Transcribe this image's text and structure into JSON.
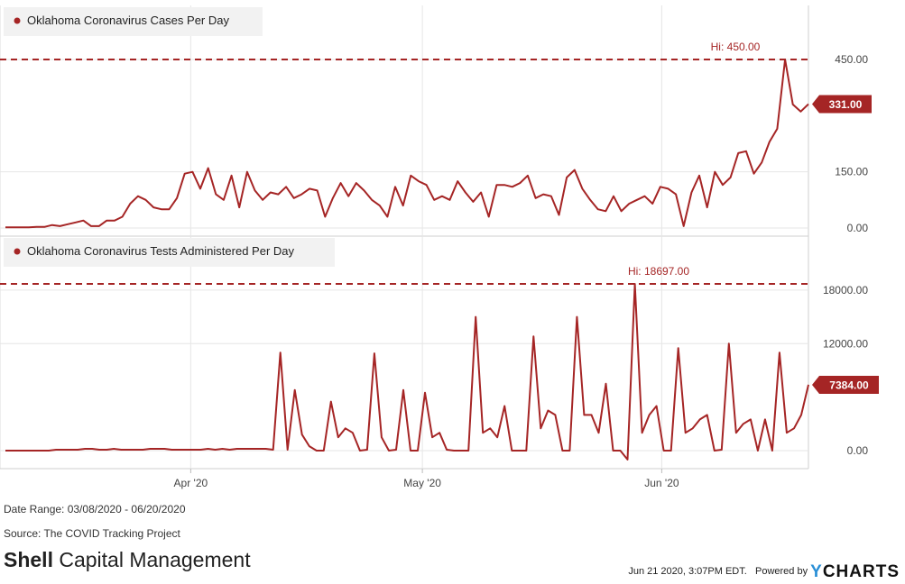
{
  "chart_data": [
    {
      "type": "line",
      "legend": "Oklahoma Coronavirus Cases Per Day",
      "color": "#a52525",
      "x_start": "03/08/2020",
      "x_end": "06/20/2020",
      "ylim": [
        0,
        450
      ],
      "yticks": [
        0,
        150,
        450
      ],
      "ytick_labels": [
        "0.00",
        "150.00",
        "450.00"
      ],
      "grid": true,
      "hi_label": "Hi: 450.00",
      "hi_value": 450,
      "last_label": "331.00",
      "last_value": 331,
      "values": [
        2,
        2,
        2,
        2,
        3,
        3,
        8,
        5,
        10,
        15,
        20,
        5,
        5,
        20,
        20,
        30,
        65,
        85,
        75,
        55,
        50,
        50,
        80,
        145,
        150,
        105,
        160,
        90,
        75,
        140,
        55,
        150,
        100,
        75,
        95,
        90,
        110,
        80,
        90,
        105,
        100,
        30,
        80,
        120,
        85,
        120,
        100,
        75,
        60,
        30,
        110,
        60,
        140,
        125,
        115,
        75,
        85,
        75,
        125,
        95,
        70,
        95,
        30,
        115,
        115,
        110,
        120,
        140,
        80,
        90,
        85,
        35,
        135,
        155,
        105,
        75,
        50,
        45,
        85,
        45,
        65,
        75,
        85,
        65,
        110,
        105,
        90,
        5,
        95,
        140,
        55,
        150,
        115,
        135,
        200,
        205,
        145,
        175,
        230,
        265,
        450,
        330,
        311,
        331
      ]
    },
    {
      "type": "line",
      "legend": "Oklahoma Coronavirus Tests Administered Per Day",
      "color": "#a52525",
      "x_start": "03/08/2020",
      "x_end": "06/20/2020",
      "ylim": [
        -1500,
        18697
      ],
      "yticks": [
        0,
        12000,
        18000
      ],
      "ytick_labels": [
        "0.00",
        "12000.00",
        "18000.00"
      ],
      "grid": true,
      "hi_label": "Hi: 18697.00",
      "hi_value": 18697,
      "last_label": "7384.00",
      "last_value": 7384,
      "values": [
        0,
        0,
        0,
        0,
        0,
        0,
        0,
        100,
        100,
        100,
        100,
        200,
        200,
        100,
        100,
        200,
        100,
        100,
        100,
        100,
        200,
        200,
        200,
        100,
        100,
        100,
        100,
        100,
        200,
        100,
        200,
        100,
        200,
        200,
        200,
        200,
        200,
        100,
        11000,
        100,
        6800,
        1800,
        500,
        0,
        0,
        5500,
        1500,
        2500,
        2000,
        0,
        100,
        10900,
        1500,
        0,
        100,
        6800,
        0,
        0,
        6500,
        1500,
        2000,
        100,
        0,
        0,
        0,
        15000,
        2000,
        2500,
        1500,
        5000,
        0,
        0,
        0,
        12800,
        2500,
        4500,
        4000,
        0,
        0,
        15000,
        4000,
        4000,
        2000,
        7500,
        0,
        0,
        -1000,
        18697,
        2000,
        4000,
        5000,
        0,
        0,
        11500,
        2000,
        2500,
        3500,
        4000,
        0,
        100,
        12000,
        2000,
        3000,
        3500,
        0,
        3500,
        0,
        11000,
        2000,
        2500,
        4000,
        7384
      ]
    }
  ],
  "x_axis": {
    "ticks": [
      {
        "label": "Apr '20",
        "date": "2020-04-01"
      },
      {
        "label": "May '20",
        "date": "2020-05-01"
      },
      {
        "label": "Jun '20",
        "date": "2020-06-01"
      }
    ]
  },
  "footer": {
    "date_range": "Date Range: 03/08/2020 - 06/20/2020",
    "source": "Source: The COVID Tracking Project",
    "brand_bold": "Shell",
    "brand_rest": " Capital Management",
    "timestamp": "Jun 21 2020, 3:07PM EDT.",
    "powered_by": "Powered by",
    "logo_y": "Y",
    "logo_rest": "CHARTS"
  }
}
